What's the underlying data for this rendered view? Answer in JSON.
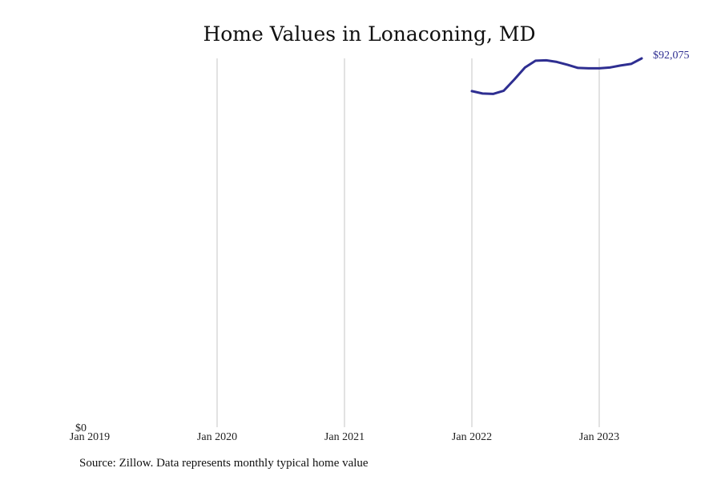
{
  "chart_data": {
    "type": "line",
    "title": "Home Values in Lonaconing, MD",
    "xlabel": "",
    "ylabel": "",
    "x_ticks": [
      "Jan 2019",
      "Jan 2020",
      "Jan 2021",
      "Jan 2022",
      "Jan 2023"
    ],
    "y_ticks": [
      "$0"
    ],
    "ylim": [
      0,
      92075
    ],
    "xlim": [
      "2019-01",
      "2023-12"
    ],
    "grid": "vertical",
    "series": [
      {
        "color": "#2e2e91",
        "end_label": "$92,075",
        "x": [
          "2022-01",
          "2022-02",
          "2022-03",
          "2022-04",
          "2022-05",
          "2022-06",
          "2022-07",
          "2022-08",
          "2022-09",
          "2022-10",
          "2022-11",
          "2022-12",
          "2023-01",
          "2023-02",
          "2023-03",
          "2023-04",
          "2023-05"
        ],
        "y": [
          83900,
          83300,
          83200,
          84000,
          86800,
          89800,
          91500,
          91600,
          91200,
          90500,
          89700,
          89600,
          89600,
          89800,
          90300,
          90700,
          92075
        ]
      }
    ]
  },
  "footer": {
    "source": "Source: Zillow. Data represents monthly typical home value"
  }
}
